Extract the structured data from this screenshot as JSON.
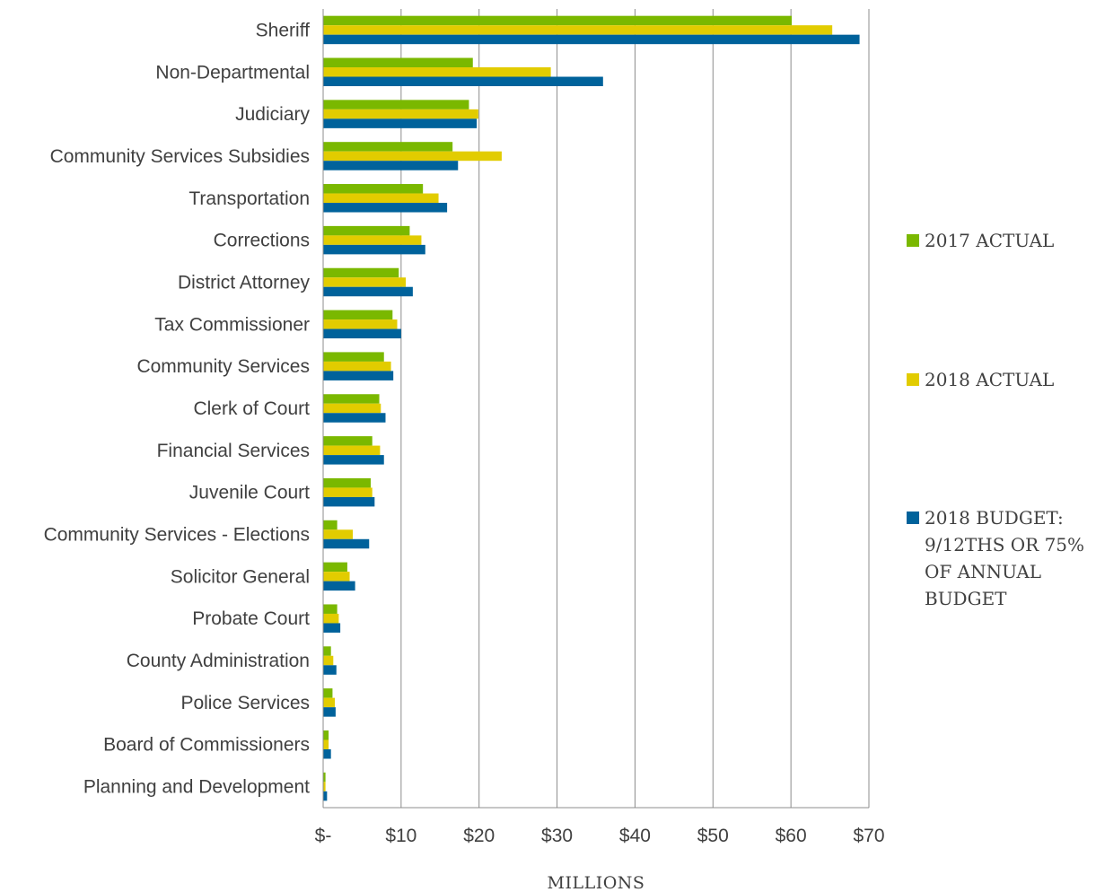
{
  "chart_data": {
    "type": "bar",
    "orientation": "horizontal",
    "categories": [
      "Sheriff",
      "Non-Departmental",
      "Judiciary",
      "Community Services Subsidies",
      "Transportation",
      "Corrections",
      "District Attorney",
      "Tax Commissioner",
      "Community Services",
      "Clerk of Court",
      "Financial Services",
      "Juvenile Court",
      "Community Services - Elections",
      "Solicitor General",
      "Probate Court",
      "County Administration",
      "Police Services",
      "Board of Commissioners",
      "Planning and Development"
    ],
    "series": [
      {
        "name": "2017 ACTUAL",
        "color": "#7ab800",
        "values": [
          60.1,
          19.2,
          18.7,
          16.6,
          12.8,
          11.1,
          9.7,
          8.9,
          7.8,
          7.2,
          6.3,
          6.1,
          1.8,
          3.1,
          1.8,
          1.0,
          1.2,
          0.7,
          0.3
        ]
      },
      {
        "name": "2018 ACTUAL",
        "color": "#e2cc00",
        "values": [
          65.3,
          29.2,
          19.9,
          22.9,
          14.8,
          12.6,
          10.6,
          9.5,
          8.7,
          7.4,
          7.3,
          6.3,
          3.8,
          3.4,
          2.0,
          1.3,
          1.5,
          0.7,
          0.3
        ]
      },
      {
        "name": "2018 BUDGET: 9/12THS OR 75% OF ANNUAL BUDGET",
        "color": "#00629b",
        "values": [
          68.8,
          35.9,
          19.7,
          17.3,
          15.9,
          13.1,
          11.5,
          10.0,
          9.0,
          8.0,
          7.8,
          6.6,
          5.9,
          4.1,
          2.2,
          1.7,
          1.6,
          1.0,
          0.5
        ]
      }
    ],
    "xlim": [
      0,
      70
    ],
    "xticks": [
      0,
      10,
      20,
      30,
      40,
      50,
      60,
      70
    ],
    "xtick_labels": [
      "$-",
      "$10",
      "$20",
      "$30",
      "$40",
      "$50",
      "$60",
      "$70"
    ],
    "xlabel": "MILLIONS",
    "ylabel": "",
    "title": "",
    "grid": "vertical",
    "legend_position": "right",
    "legend_lines": [
      [
        "2017 ACTUAL"
      ],
      [
        "2018 ACTUAL"
      ],
      [
        "2018 BUDGET:",
        "9/12THS OR 75%",
        "OF ANNUAL",
        "BUDGET"
      ]
    ]
  }
}
